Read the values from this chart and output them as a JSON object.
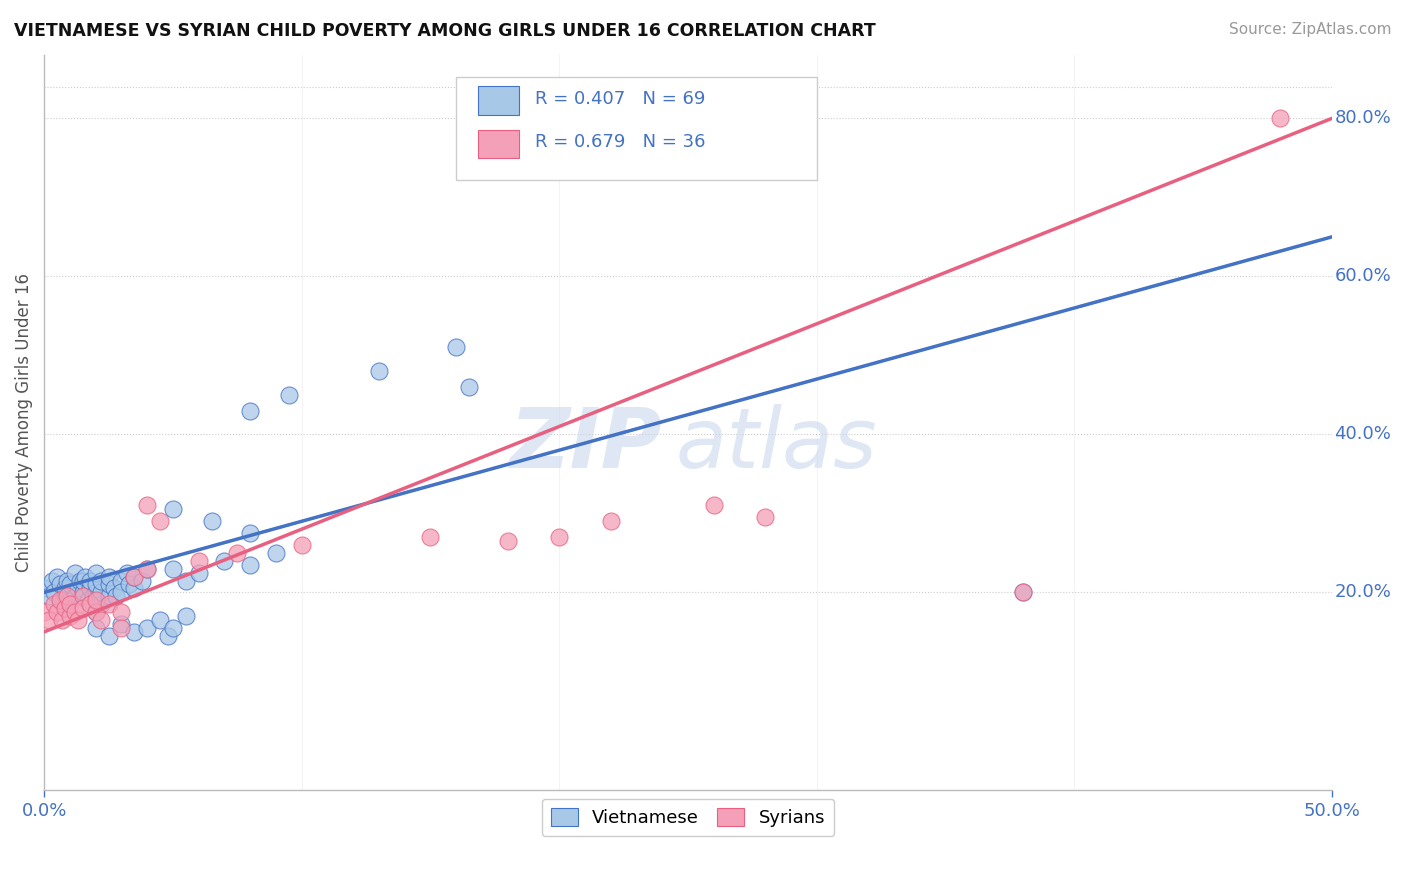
{
  "title": "VIETNAMESE VS SYRIAN CHILD POVERTY AMONG GIRLS UNDER 16 CORRELATION CHART",
  "source": "Source: ZipAtlas.com",
  "ylabel": "Child Poverty Among Girls Under 16",
  "xlim": [
    0.0,
    0.5
  ],
  "ylim": [
    -0.05,
    0.88
  ],
  "ytick_positions": [
    0.2,
    0.4,
    0.6,
    0.8
  ],
  "ytick_labels": [
    "20.0%",
    "40.0%",
    "60.0%",
    "80.0%"
  ],
  "color_vietnamese": "#A8C8E8",
  "color_syrian": "#F4A0B8",
  "line_color_vietnamese": "#4472C4",
  "line_color_syrian": "#E86080",
  "line_color_dashed": "#88BBDD",
  "watermark_zip": "ZIP",
  "watermark_atlas": "atlas",
  "viet_line_x0": 0.0,
  "viet_line_y0": 0.2,
  "viet_line_x1": 0.5,
  "viet_line_y1": 0.65,
  "syr_line_x0": 0.0,
  "syr_line_y0": 0.15,
  "syr_line_x1": 0.5,
  "syr_line_y1": 0.8,
  "dash_line_x0": 0.0,
  "dash_line_y0": 0.2,
  "dash_line_x1": 0.5,
  "dash_line_y1": 0.65
}
